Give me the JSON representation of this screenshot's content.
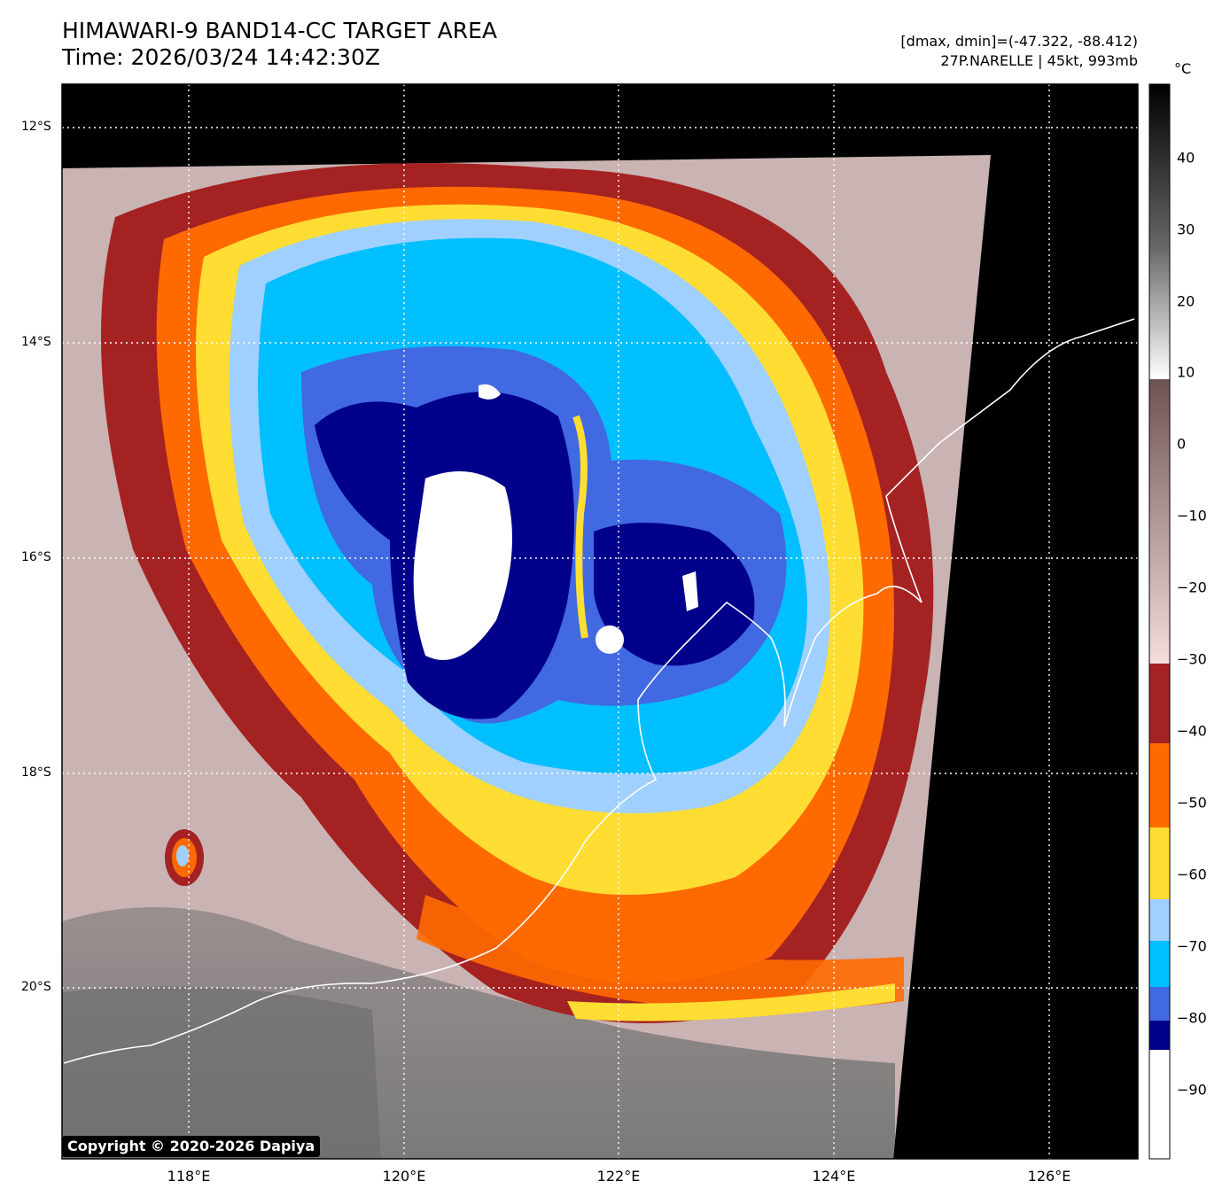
{
  "title": {
    "line1": "HIMAWARI-9 BAND14-CC TARGET AREA",
    "line2": "Time: 2026/03/24 14:42:30Z"
  },
  "info": {
    "range": "[dmax, dmin]=(-47.322, -88.412)",
    "storm": "27P.NARELLE | 45kt, 993mb"
  },
  "colorbar": {
    "unit": "°C",
    "ticks": [
      "40",
      "30",
      "20",
      "10",
      "0",
      "−10",
      "−20",
      "−30",
      "−40",
      "−50",
      "−60",
      "−70",
      "−80",
      "−90"
    ]
  },
  "axes": {
    "lat_labels": [
      "12°S",
      "14°S",
      "16°S",
      "18°S",
      "20°S"
    ],
    "lon_labels": [
      "118°E",
      "120°E",
      "122°E",
      "124°E",
      "126°E"
    ]
  },
  "colors": {
    "no_data": "#000000",
    "warm_surface": "#cfb6b6",
    "land": "#8a8a8a",
    "band_-40": "#a52222",
    "band_-50": "#ff6a00",
    "band_-60": "#ffdd33",
    "band_-70": "#9fd0ff",
    "band_-75": "#00bfff",
    "band_-80": "#4169e1",
    "band_-85": "#00008b",
    "band_-90": "#ffffff",
    "coastline": "#ffffff"
  },
  "copyright": "Copyright © 2020-2026 Dapiya"
}
